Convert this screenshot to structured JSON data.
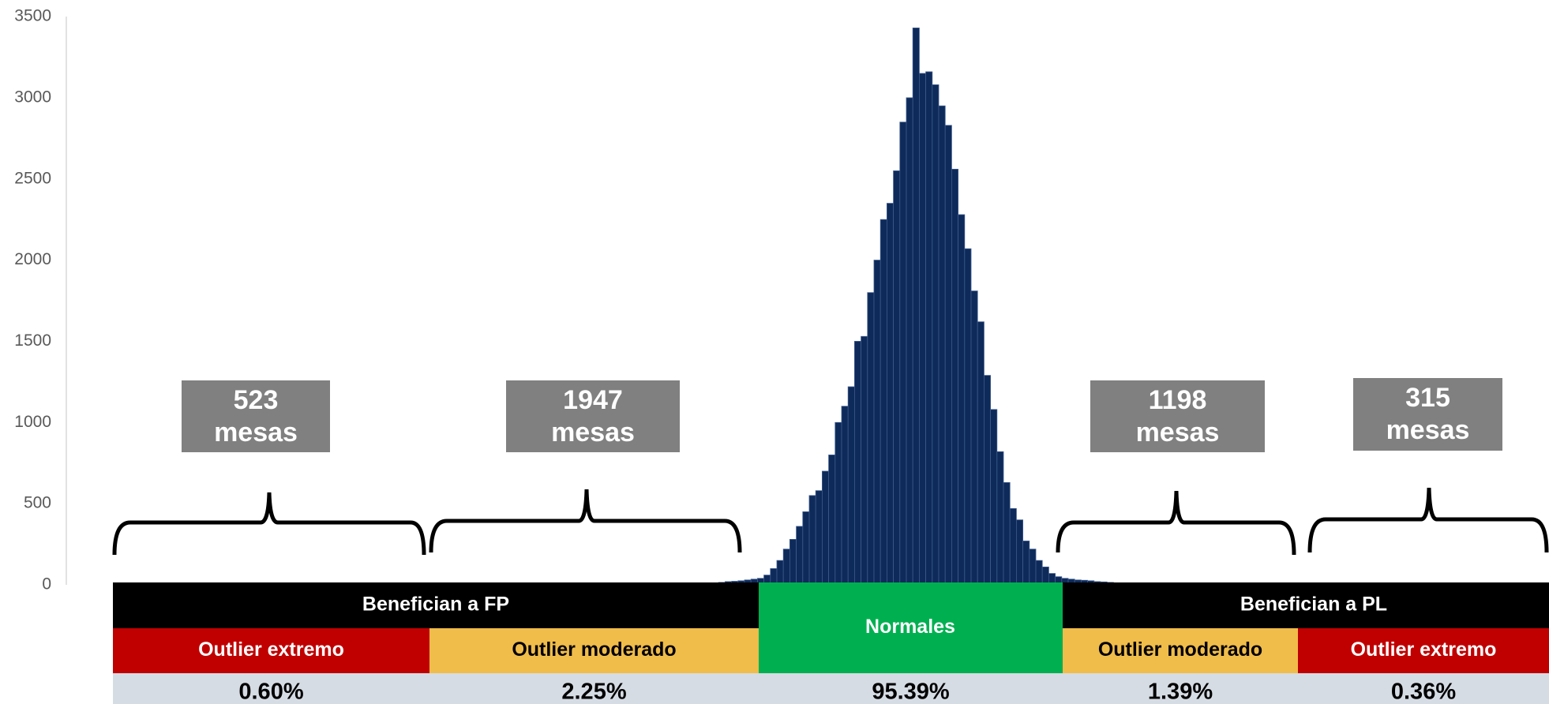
{
  "chart_data": {
    "type": "histogram",
    "color": "#0d2a5a",
    "ylim": [
      0,
      3500
    ],
    "yticks": [
      0,
      500,
      1000,
      1500,
      2000,
      2500,
      3000,
      3500
    ],
    "values": [
      2,
      3,
      5,
      8,
      10,
      12,
      15,
      20,
      22,
      25,
      30,
      35,
      40,
      60,
      100,
      150,
      220,
      280,
      360,
      450,
      550,
      580,
      700,
      800,
      1000,
      1100,
      1220,
      1500,
      1530,
      1800,
      2000,
      2250,
      2350,
      2550,
      2850,
      3000,
      3430,
      3150,
      3160,
      3080,
      2950,
      2830,
      2560,
      2280,
      2070,
      1810,
      1620,
      1290,
      1080,
      820,
      630,
      470,
      400,
      270,
      220,
      150,
      110,
      70,
      50,
      40,
      35,
      30,
      28,
      25,
      20,
      18,
      15,
      12,
      10,
      10,
      8,
      6,
      5,
      4,
      3,
      2,
      2,
      1
    ],
    "annotations": [
      {
        "lines": [
          "523",
          "mesas"
        ]
      },
      {
        "lines": [
          "1947",
          "mesas"
        ]
      },
      {
        "lines": [
          "1198",
          "mesas"
        ]
      },
      {
        "lines": [
          "315",
          "mesas"
        ]
      }
    ],
    "table": {
      "groups": [
        "Benefician a FP",
        "Normales",
        "Benefician a PL"
      ],
      "categories": [
        "Outlier  extremo",
        "Outlier moderado",
        "Outlier  moderado",
        "Outlier extremo"
      ],
      "shares": [
        "0.60%",
        "2.25%",
        "95.39%",
        "1.39%",
        "0.36%"
      ]
    }
  }
}
